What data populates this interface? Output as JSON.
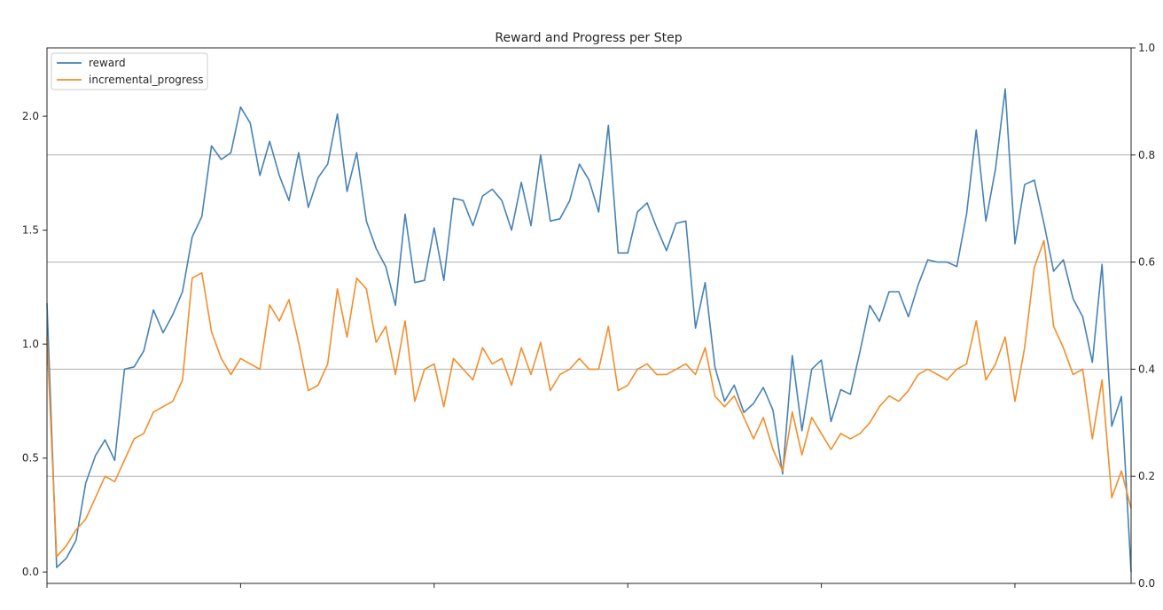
{
  "chart_data": {
    "type": "line",
    "title": "Reward and Progress per Step",
    "xlabel": "",
    "ylabel": "",
    "x_tick_labels": [],
    "grid": "horizontal lines at right-axis ticks",
    "legend": {
      "placement": "top-left",
      "entries": [
        "reward",
        "incremental_progress"
      ]
    },
    "axes": {
      "left": {
        "ylim": [
          -0.05,
          2.3
        ],
        "ticks": [
          0.0,
          0.5,
          1.0,
          1.5,
          2.0
        ],
        "tick_labels": [
          "0.0",
          "0.5",
          "1.0",
          "1.5",
          "2.0"
        ]
      },
      "right": {
        "ylim": [
          0.0,
          1.0
        ],
        "ticks": [
          0.0,
          0.2,
          0.4,
          0.6,
          0.8,
          1.0
        ],
        "tick_labels": [
          "0.0",
          "0.2",
          "0.4",
          "0.6",
          "0.8",
          "1.0"
        ]
      }
    },
    "xlim": [
      0,
      112
    ],
    "series": [
      {
        "name": "reward",
        "axis": "left",
        "color": "#4682b4",
        "values": [
          1.18,
          0.02,
          0.06,
          0.14,
          0.39,
          0.51,
          0.58,
          0.49,
          0.89,
          0.9,
          0.97,
          1.15,
          1.05,
          1.13,
          1.23,
          1.47,
          1.56,
          1.87,
          1.81,
          1.84,
          2.04,
          1.97,
          1.74,
          1.89,
          1.74,
          1.63,
          1.84,
          1.6,
          1.73,
          1.79,
          2.01,
          1.67,
          1.84,
          1.54,
          1.42,
          1.34,
          1.17,
          1.57,
          1.27,
          1.28,
          1.51,
          1.28,
          1.64,
          1.63,
          1.52,
          1.65,
          1.68,
          1.63,
          1.5,
          1.71,
          1.52,
          1.83,
          1.54,
          1.55,
          1.63,
          1.79,
          1.72,
          1.58,
          1.96,
          1.4,
          1.4,
          1.58,
          1.62,
          1.51,
          1.41,
          1.53,
          1.54,
          1.07,
          1.27,
          0.9,
          0.75,
          0.82,
          0.7,
          0.74,
          0.81,
          0.71,
          0.43,
          0.95,
          0.62,
          0.89,
          0.93,
          0.66,
          0.8,
          0.78,
          0.97,
          1.17,
          1.1,
          1.23,
          1.23,
          1.12,
          1.26,
          1.37,
          1.36,
          1.36,
          1.34,
          1.57,
          1.94,
          1.54,
          1.77,
          2.12,
          1.44,
          1.7,
          1.72,
          1.53,
          1.32,
          1.37,
          1.2,
          1.12,
          0.92,
          1.35,
          0.64,
          0.77,
          0.0
        ]
      },
      {
        "name": "incremental_progress",
        "axis": "right",
        "color": "#f28e2b",
        "values": [
          0.46,
          0.05,
          0.07,
          0.1,
          0.12,
          0.16,
          0.2,
          0.19,
          0.23,
          0.27,
          0.28,
          0.32,
          0.33,
          0.34,
          0.38,
          0.57,
          0.58,
          0.47,
          0.42,
          0.39,
          0.42,
          0.41,
          0.4,
          0.52,
          0.49,
          0.53,
          0.45,
          0.36,
          0.37,
          0.41,
          0.55,
          0.46,
          0.57,
          0.55,
          0.45,
          0.48,
          0.39,
          0.49,
          0.34,
          0.4,
          0.41,
          0.33,
          0.42,
          0.4,
          0.38,
          0.44,
          0.41,
          0.42,
          0.37,
          0.44,
          0.39,
          0.45,
          0.36,
          0.39,
          0.4,
          0.42,
          0.4,
          0.4,
          0.48,
          0.36,
          0.37,
          0.4,
          0.41,
          0.39,
          0.39,
          0.4,
          0.41,
          0.39,
          0.44,
          0.35,
          0.33,
          0.35,
          0.31,
          0.27,
          0.31,
          0.25,
          0.21,
          0.32,
          0.24,
          0.31,
          0.28,
          0.25,
          0.28,
          0.27,
          0.28,
          0.3,
          0.33,
          0.35,
          0.34,
          0.36,
          0.39,
          0.4,
          0.39,
          0.38,
          0.4,
          0.41,
          0.49,
          0.38,
          0.41,
          0.46,
          0.34,
          0.44,
          0.59,
          0.64,
          0.48,
          0.44,
          0.39,
          0.4,
          0.27,
          0.38,
          0.16,
          0.21,
          0.14
        ]
      }
    ]
  }
}
